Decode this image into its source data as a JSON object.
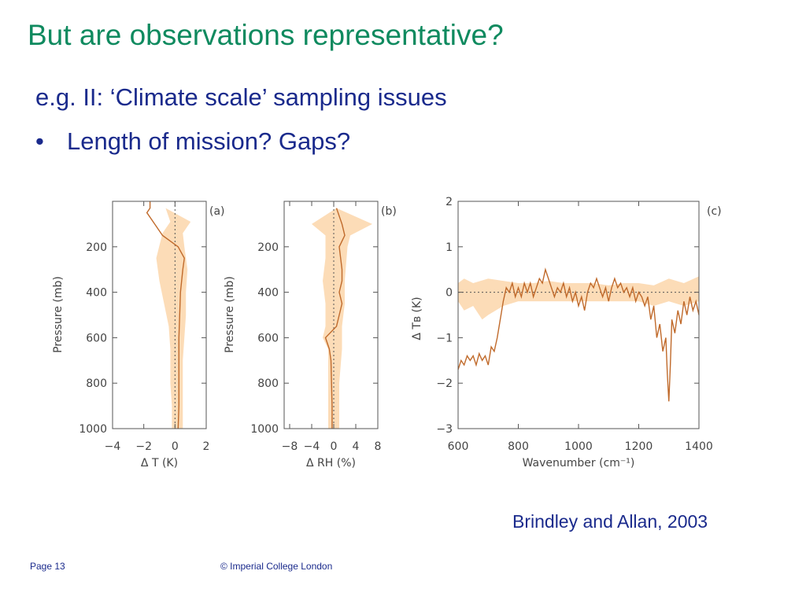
{
  "slide": {
    "title": "But are observations representative?",
    "subheading": "e.g. II: ‘Climate scale’ sampling issues",
    "bullet_marker": "•",
    "bullet": "Length of mission? Gaps?",
    "citation": "Brindley and Allan, 2003",
    "footer_page": "Page 13",
    "footer_copyright": "© Imperial College London"
  },
  "colors": {
    "title": "#0f8a5f",
    "body_text": "#1a2a8c",
    "band_fill": "#fcdcb7",
    "line": "#c06a2b"
  },
  "chart_data": [
    {
      "type": "line",
      "panel_label": "(a)",
      "xlabel": "Δ T (K)",
      "ylabel": "Pressure (mb)",
      "xlim": [
        -4,
        2
      ],
      "ylim": [
        1000,
        0
      ],
      "xticks": [
        "−4",
        "−2",
        "0",
        "2"
      ],
      "yticks": [
        "200",
        "400",
        "600",
        "800",
        "1000"
      ],
      "series": [
        {
          "kind": "line",
          "points": [
            [
              -1.6,
              0
            ],
            [
              -1.6,
              30
            ],
            [
              -1.8,
              50
            ],
            [
              -1.3,
              100
            ],
            [
              -0.8,
              150
            ],
            [
              0.2,
              200
            ],
            [
              0.6,
              250
            ],
            [
              0.5,
              300
            ],
            [
              0.35,
              400
            ],
            [
              0.3,
              500
            ],
            [
              0.25,
              600
            ],
            [
              0.25,
              700
            ],
            [
              0.25,
              800
            ],
            [
              0.25,
              900
            ],
            [
              0.2,
              1000
            ]
          ]
        },
        {
          "kind": "band",
          "upper": [
            [
              -0.6,
              30
            ],
            [
              1.0,
              90
            ],
            [
              0.5,
              140
            ],
            [
              0.6,
              200
            ],
            [
              0.8,
              300
            ],
            [
              0.7,
              400
            ],
            [
              0.7,
              500
            ],
            [
              0.6,
              600
            ],
            [
              0.5,
              700
            ],
            [
              0.5,
              800
            ],
            [
              0.5,
              900
            ],
            [
              0.5,
              1000
            ]
          ],
          "lower": [
            [
              -0.6,
              30
            ],
            [
              -0.3,
              90
            ],
            [
              -0.8,
              140
            ],
            [
              -1.2,
              250
            ],
            [
              -1.0,
              350
            ],
            [
              -0.7,
              450
            ],
            [
              -0.4,
              550
            ],
            [
              -0.3,
              650
            ],
            [
              -0.3,
              800
            ],
            [
              -0.2,
              900
            ],
            [
              -0.2,
              1000
            ]
          ]
        }
      ]
    },
    {
      "type": "line",
      "panel_label": "(b)",
      "xlabel": "Δ RH (%)",
      "ylabel": "Pressure (mb)",
      "xlim": [
        -9,
        8
      ],
      "ylim": [
        1000,
        0
      ],
      "xticks": [
        "−8",
        "−4",
        "0",
        "4",
        "8"
      ],
      "yticks": [
        "200",
        "400",
        "600",
        "800",
        "1000"
      ],
      "series": [
        {
          "kind": "line",
          "points": [
            [
              0.5,
              30
            ],
            [
              1.5,
              100
            ],
            [
              2.0,
              150
            ],
            [
              1.0,
              200
            ],
            [
              1.5,
              300
            ],
            [
              1.5,
              350
            ],
            [
              1.0,
              400
            ],
            [
              1.5,
              450
            ],
            [
              1.0,
              500
            ],
            [
              0.5,
              550
            ],
            [
              -1.5,
              600
            ],
            [
              -0.8,
              650
            ],
            [
              -0.5,
              700
            ],
            [
              -0.4,
              800
            ],
            [
              -0.3,
              900
            ],
            [
              -0.3,
              1000
            ]
          ]
        },
        {
          "kind": "band",
          "upper": [
            [
              0.5,
              30
            ],
            [
              7.0,
              100
            ],
            [
              3.0,
              150
            ],
            [
              2.5,
              200
            ],
            [
              2.0,
              350
            ],
            [
              2.0,
              450
            ],
            [
              1.5,
              550
            ],
            [
              1.5,
              650
            ],
            [
              1.0,
              800
            ],
            [
              1.0,
              1000
            ]
          ],
          "lower": [
            [
              0.5,
              30
            ],
            [
              -4.0,
              100
            ],
            [
              -1.5,
              150
            ],
            [
              -1.5,
              250
            ],
            [
              -2.0,
              350
            ],
            [
              -1.5,
              450
            ],
            [
              -1.5,
              550
            ],
            [
              -2.0,
              600
            ],
            [
              -1.0,
              650
            ],
            [
              -1.0,
              800
            ],
            [
              -1.0,
              1000
            ]
          ]
        }
      ]
    },
    {
      "type": "line",
      "panel_label": "(c)",
      "xlabel": "Wavenumber (cm⁻¹)",
      "ylabel": "Δ Tʙ (K)",
      "xlim": [
        600,
        1400
      ],
      "ylim": [
        -3,
        2
      ],
      "xticks": [
        "600",
        "800",
        "1000",
        "1200",
        "1400"
      ],
      "yticks": [
        "−3",
        "−2",
        "−1",
        "0",
        "1",
        "2"
      ],
      "series": [
        {
          "kind": "band",
          "upper": [
            [
              600,
              0.2
            ],
            [
              620,
              0.3
            ],
            [
              650,
              0.2
            ],
            [
              700,
              0.3
            ],
            [
              750,
              0.25
            ],
            [
              800,
              0.2
            ],
            [
              850,
              0.2
            ],
            [
              900,
              0.25
            ],
            [
              950,
              0.2
            ],
            [
              1000,
              0.2
            ],
            [
              1050,
              0.2
            ],
            [
              1100,
              0.15
            ],
            [
              1150,
              0.2
            ],
            [
              1200,
              0.2
            ],
            [
              1250,
              0.15
            ],
            [
              1300,
              0.3
            ],
            [
              1350,
              0.2
            ],
            [
              1400,
              0.35
            ]
          ],
          "lower": [
            [
              600,
              -0.2
            ],
            [
              620,
              -0.4
            ],
            [
              650,
              -0.3
            ],
            [
              680,
              -0.6
            ],
            [
              700,
              -0.5
            ],
            [
              750,
              -0.3
            ],
            [
              800,
              -0.2
            ],
            [
              850,
              -0.2
            ],
            [
              900,
              -0.2
            ],
            [
              950,
              -0.2
            ],
            [
              1000,
              -0.2
            ],
            [
              1050,
              -0.2
            ],
            [
              1100,
              -0.2
            ],
            [
              1150,
              -0.2
            ],
            [
              1200,
              -0.2
            ],
            [
              1250,
              -0.3
            ],
            [
              1300,
              -0.2
            ],
            [
              1350,
              -0.3
            ],
            [
              1400,
              -0.2
            ]
          ]
        },
        {
          "kind": "line",
          "points": [
            [
              600,
              -1.7
            ],
            [
              610,
              -1.5
            ],
            [
              620,
              -1.6
            ],
            [
              630,
              -1.4
            ],
            [
              640,
              -1.5
            ],
            [
              650,
              -1.4
            ],
            [
              660,
              -1.6
            ],
            [
              670,
              -1.35
            ],
            [
              680,
              -1.5
            ],
            [
              690,
              -1.4
            ],
            [
              700,
              -1.6
            ],
            [
              710,
              -1.2
            ],
            [
              720,
              -1.3
            ],
            [
              730,
              -1.0
            ],
            [
              740,
              -0.6
            ],
            [
              750,
              -0.2
            ],
            [
              760,
              0.1
            ],
            [
              770,
              0.0
            ],
            [
              780,
              0.2
            ],
            [
              790,
              -0.1
            ],
            [
              800,
              0.1
            ],
            [
              810,
              -0.1
            ],
            [
              820,
              0.2
            ],
            [
              830,
              0.0
            ],
            [
              840,
              0.2
            ],
            [
              850,
              -0.1
            ],
            [
              860,
              0.1
            ],
            [
              870,
              0.3
            ],
            [
              880,
              0.2
            ],
            [
              890,
              0.5
            ],
            [
              900,
              0.3
            ],
            [
              910,
              0.1
            ],
            [
              920,
              -0.1
            ],
            [
              930,
              0.1
            ],
            [
              940,
              0.0
            ],
            [
              950,
              0.2
            ],
            [
              960,
              -0.1
            ],
            [
              970,
              0.1
            ],
            [
              980,
              -0.2
            ],
            [
              990,
              0.0
            ],
            [
              1000,
              -0.3
            ],
            [
              1010,
              -0.1
            ],
            [
              1020,
              -0.4
            ],
            [
              1030,
              0.0
            ],
            [
              1040,
              0.2
            ],
            [
              1050,
              0.1
            ],
            [
              1060,
              0.3
            ],
            [
              1070,
              0.1
            ],
            [
              1080,
              -0.1
            ],
            [
              1090,
              0.1
            ],
            [
              1100,
              -0.2
            ],
            [
              1110,
              0.1
            ],
            [
              1120,
              0.3
            ],
            [
              1130,
              0.1
            ],
            [
              1140,
              0.2
            ],
            [
              1150,
              0.0
            ],
            [
              1160,
              0.1
            ],
            [
              1170,
              -0.1
            ],
            [
              1180,
              0.1
            ],
            [
              1190,
              -0.2
            ],
            [
              1200,
              0.0
            ],
            [
              1210,
              -0.1
            ],
            [
              1220,
              -0.3
            ],
            [
              1230,
              -0.1
            ],
            [
              1240,
              -0.6
            ],
            [
              1250,
              -0.3
            ],
            [
              1260,
              -1.0
            ],
            [
              1270,
              -0.7
            ],
            [
              1280,
              -1.3
            ],
            [
              1290,
              -1.0
            ],
            [
              1295,
              -1.8
            ],
            [
              1300,
              -2.4
            ],
            [
              1305,
              -1.6
            ],
            [
              1310,
              -0.6
            ],
            [
              1320,
              -0.9
            ],
            [
              1330,
              -0.4
            ],
            [
              1340,
              -0.7
            ],
            [
              1350,
              -0.2
            ],
            [
              1360,
              -0.5
            ],
            [
              1370,
              -0.1
            ],
            [
              1380,
              -0.4
            ],
            [
              1390,
              -0.2
            ],
            [
              1400,
              -0.5
            ]
          ]
        }
      ]
    }
  ]
}
